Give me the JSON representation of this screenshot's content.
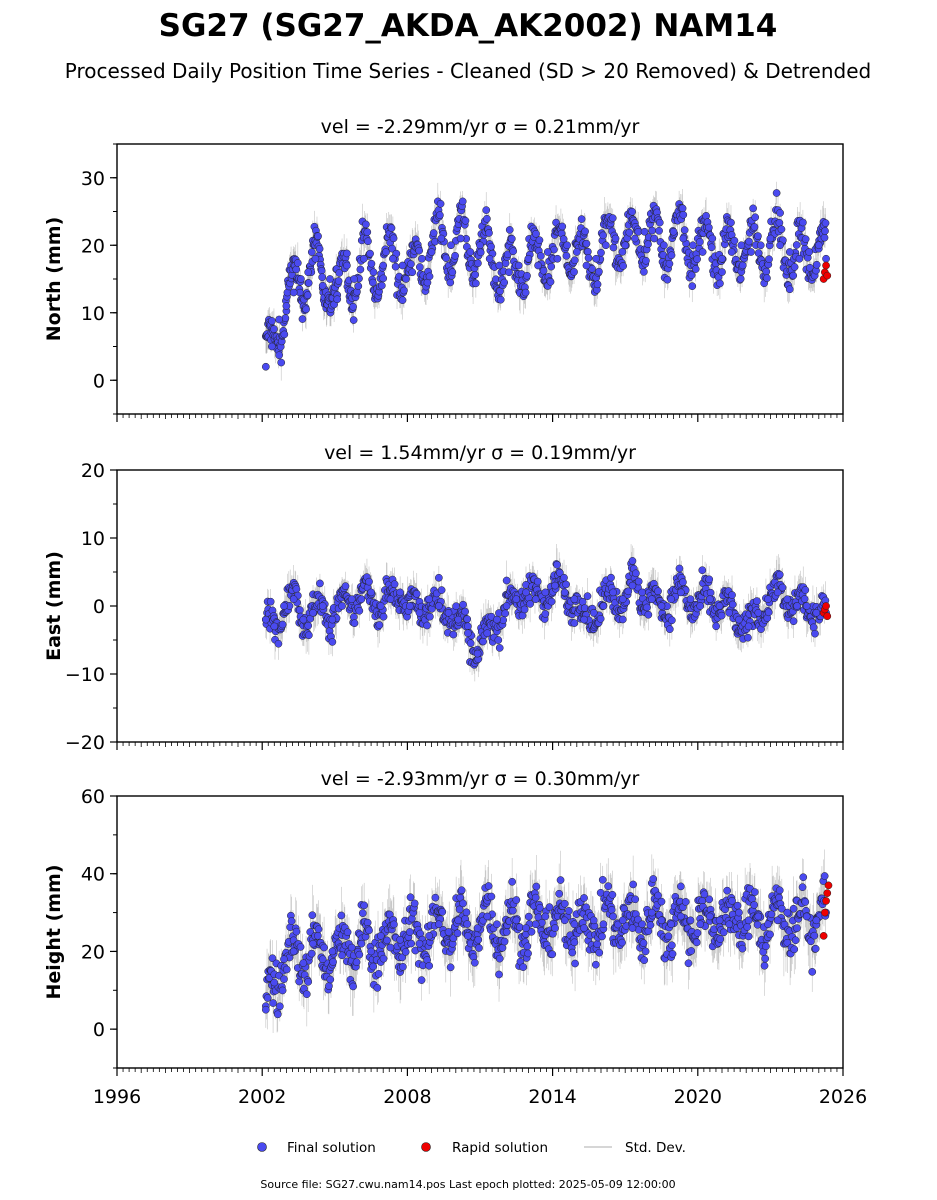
{
  "title": "SG27 (SG27_AKDA_AK2002) NAM14",
  "subtitle": "Processed Daily Position Time Series - Cleaned (SD > 20 Removed) & Detrended",
  "footer": "Source file: SG27.cwu.nam14.pos  Last epoch plotted: 2025-05-09 12:00:00",
  "legend": {
    "placement": "bottom-center",
    "items": [
      {
        "label": "Final solution",
        "color": "#4a4af0"
      },
      {
        "label": "Rapid solution",
        "color": "#ee0000"
      },
      {
        "label": "Std. Dev.",
        "color": "#c8c8c8"
      }
    ]
  },
  "colors": {
    "final": "#4a4af0",
    "rapid": "#ee0000",
    "error_bar": "#7a7a7a"
  },
  "chart_data": [
    {
      "type": "scatter",
      "title": "vel = -2.29mm/yr   σ = 0.21mm/yr",
      "ylabel": "North (mm)",
      "xlim": [
        1996,
        2026
      ],
      "ylim": [
        -5,
        35
      ],
      "yticks": [
        0,
        10,
        20,
        30
      ],
      "series": [
        {
          "name": "Final solution",
          "x": [
            2002.15,
            2002.4,
            2002.7,
            2003.0,
            2003.3,
            2003.6,
            2003.9,
            2004.2,
            2004.5,
            2004.8,
            2005.1,
            2005.5,
            2005.8,
            2006.2,
            2006.6,
            2007.0,
            2007.4,
            2007.8,
            2008.2,
            2008.6,
            2009.0,
            2009.4,
            2009.8,
            2010.2,
            2010.6,
            2011.0,
            2011.4,
            2011.8,
            2012.2,
            2012.6,
            2013.0,
            2013.4,
            2013.8,
            2014.2,
            2014.6,
            2015.0,
            2015.4,
            2015.8,
            2016.2,
            2016.6,
            2017.0,
            2017.4,
            2017.8,
            2018.2,
            2018.6,
            2019.0,
            2019.4,
            2019.8,
            2020.2,
            2020.6,
            2021.0,
            2021.4,
            2021.8,
            2022.2,
            2022.6,
            2023.0,
            2023.4,
            2023.8,
            2024.2,
            2024.6,
            2025.0,
            2025.3
          ],
          "y": [
            2,
            5,
            9,
            11,
            13,
            15,
            16,
            18,
            14,
            15,
            12,
            17,
            15,
            18,
            16,
            17,
            18,
            17,
            16,
            18,
            19,
            21,
            20,
            21,
            19,
            20,
            18,
            17,
            16,
            17,
            18,
            17,
            19,
            18,
            20,
            19,
            17,
            18,
            20,
            21,
            20,
            21,
            22,
            21,
            20,
            22,
            21,
            20,
            19,
            21,
            18,
            19,
            20,
            19,
            20,
            21,
            20,
            19,
            18,
            19,
            20,
            18
          ]
        },
        {
          "name": "Rapid solution",
          "x": [
            2025.2,
            2025.25,
            2025.3,
            2025.35
          ],
          "y": [
            15,
            16,
            17,
            15.5
          ]
        }
      ]
    },
    {
      "type": "scatter",
      "title": "vel = 1.54mm/yr   σ = 0.19mm/yr",
      "ylabel": "East (mm)",
      "xlim": [
        1996,
        2026
      ],
      "ylim": [
        -20,
        20
      ],
      "yticks": [
        -20,
        -10,
        0,
        10,
        20
      ],
      "series": [
        {
          "name": "Final solution",
          "x": [
            2002.15,
            2002.5,
            2002.9,
            2003.3,
            2003.7,
            2004.1,
            2004.5,
            2004.9,
            2005.3,
            2005.7,
            2006.1,
            2006.5,
            2006.9,
            2007.3,
            2007.7,
            2008.1,
            2008.5,
            2008.9,
            2009.3,
            2009.7,
            2010.1,
            2010.5,
            2010.9,
            2011.3,
            2011.7,
            2012.1,
            2012.5,
            2012.9,
            2013.3,
            2013.7,
            2014.1,
            2014.5,
            2014.9,
            2015.3,
            2015.7,
            2016.1,
            2016.5,
            2016.9,
            2017.3,
            2017.7,
            2018.1,
            2018.5,
            2018.9,
            2019.3,
            2019.7,
            2020.1,
            2020.5,
            2020.9,
            2021.3,
            2021.7,
            2022.1,
            2022.5,
            2022.9,
            2023.3,
            2023.7,
            2024.1,
            2024.5,
            2024.9,
            2025.3
          ],
          "y": [
            -2,
            -3,
            0,
            1,
            -2,
            -1,
            0,
            -2,
            0,
            1,
            1,
            2,
            0,
            1,
            2,
            0,
            -1,
            1,
            0,
            -1,
            -2,
            -4,
            -7,
            -4,
            -2,
            0,
            1,
            2,
            1,
            2,
            3,
            2,
            1,
            -2,
            -1,
            0,
            2,
            1,
            3,
            2,
            1,
            0,
            1,
            2,
            1,
            0,
            1,
            0,
            -1,
            -2,
            -3,
            -1,
            1,
            2,
            1,
            0,
            0,
            -1,
            -1
          ]
        },
        {
          "name": "Rapid solution",
          "x": [
            2025.2,
            2025.25,
            2025.3,
            2025.35
          ],
          "y": [
            -1,
            -0.5,
            0,
            -1.5
          ]
        }
      ]
    },
    {
      "type": "scatter",
      "title": "vel = -2.93mm/yr   σ = 0.30mm/yr",
      "ylabel": "Height (mm)",
      "xlabel": "",
      "xlim": [
        1996,
        2026
      ],
      "ylim": [
        -10,
        60
      ],
      "yticks": [
        0,
        20,
        40,
        60
      ],
      "xticks": [
        1996,
        2002,
        2008,
        2014,
        2020,
        2026
      ],
      "series": [
        {
          "name": "Final solution",
          "x": [
            2002.15,
            2002.5,
            2002.9,
            2003.3,
            2003.7,
            2004.1,
            2004.5,
            2004.9,
            2005.3,
            2005.7,
            2006.1,
            2006.5,
            2006.9,
            2007.3,
            2007.7,
            2008.1,
            2008.5,
            2008.9,
            2009.3,
            2009.7,
            2010.1,
            2010.5,
            2010.9,
            2011.3,
            2011.7,
            2012.1,
            2012.5,
            2012.9,
            2013.3,
            2013.7,
            2014.1,
            2014.5,
            2014.9,
            2015.3,
            2015.7,
            2016.1,
            2016.5,
            2016.9,
            2017.3,
            2017.7,
            2018.1,
            2018.5,
            2018.9,
            2019.3,
            2019.7,
            2020.1,
            2020.5,
            2020.9,
            2021.3,
            2021.7,
            2022.1,
            2022.5,
            2022.9,
            2023.3,
            2023.7,
            2024.1,
            2024.5,
            2024.9,
            2025.3
          ],
          "y": [
            5,
            12,
            18,
            20,
            17,
            22,
            18,
            20,
            19,
            21,
            22,
            20,
            24,
            21,
            23,
            25,
            22,
            24,
            27,
            25,
            28,
            24,
            26,
            29,
            27,
            25,
            28,
            26,
            27,
            29,
            26,
            28,
            27,
            26,
            28,
            27,
            29,
            28,
            26,
            27,
            30,
            28,
            27,
            29,
            28,
            27,
            29,
            28,
            27,
            30,
            28,
            29,
            27,
            28,
            30,
            26,
            29,
            28,
            30
          ]
        },
        {
          "name": "Rapid solution",
          "x": [
            2025.2,
            2025.25,
            2025.3,
            2025.35,
            2025.4
          ],
          "y": [
            24,
            30,
            33,
            35,
            37
          ]
        }
      ]
    }
  ]
}
